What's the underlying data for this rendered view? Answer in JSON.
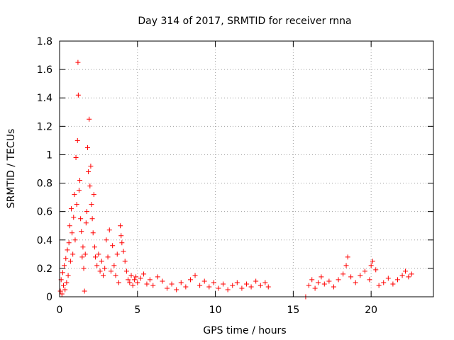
{
  "chart_data": {
    "type": "scatter",
    "title": "Day 314 of 2017, SRMTID for receiver rnna",
    "xlabel": "GPS time / hours",
    "ylabel": "SRMTID / TECUs",
    "xlim": [
      0,
      24
    ],
    "ylim": [
      0,
      1.8
    ],
    "xticks": [
      0,
      5,
      10,
      15,
      20
    ],
    "xtick_labels": [
      "0",
      "5",
      "10",
      "15",
      "20"
    ],
    "yticks": [
      0,
      0.2,
      0.4,
      0.6,
      0.8,
      1,
      1.2,
      1.4,
      1.6,
      1.8
    ],
    "ytick_labels": [
      "0",
      "0.2",
      "0.4",
      "0.6",
      "0.8",
      "1",
      "1.2",
      "1.4",
      "1.6",
      "1.8"
    ],
    "grid": true,
    "marker": "+",
    "marker_color": "#ff0000",
    "series": [
      {
        "name": "SRMTID",
        "points": [
          [
            0.05,
            0.04
          ],
          [
            0.1,
            0.12
          ],
          [
            0.15,
            0.02
          ],
          [
            0.2,
            0.17
          ],
          [
            0.25,
            0.08
          ],
          [
            0.3,
            0.22
          ],
          [
            0.35,
            0.05
          ],
          [
            0.4,
            0.27
          ],
          [
            0.45,
            0.1
          ],
          [
            0.5,
            0.33
          ],
          [
            0.55,
            0.15
          ],
          [
            0.6,
            0.38
          ],
          [
            0.65,
            0.5
          ],
          [
            0.7,
            0.25
          ],
          [
            0.75,
            0.62
          ],
          [
            0.8,
            0.45
          ],
          [
            0.85,
            0.3
          ],
          [
            0.9,
            0.56
          ],
          [
            0.95,
            0.72
          ],
          [
            1.0,
            0.4
          ],
          [
            1.05,
            0.98
          ],
          [
            1.1,
            0.65
          ],
          [
            1.15,
            1.1
          ],
          [
            1.18,
            1.65
          ],
          [
            1.2,
            1.42
          ],
          [
            1.25,
            0.75
          ],
          [
            1.3,
            0.82
          ],
          [
            1.35,
            0.55
          ],
          [
            1.4,
            0.46
          ],
          [
            1.45,
            0.28
          ],
          [
            1.5,
            0.35
          ],
          [
            1.55,
            0.2
          ],
          [
            1.6,
            0.04
          ],
          [
            1.65,
            0.3
          ],
          [
            1.7,
            0.52
          ],
          [
            1.75,
            0.6
          ],
          [
            1.8,
            1.05
          ],
          [
            1.85,
            0.88
          ],
          [
            1.9,
            1.25
          ],
          [
            1.95,
            0.78
          ],
          [
            2.0,
            0.92
          ],
          [
            2.05,
            0.65
          ],
          [
            2.1,
            0.55
          ],
          [
            2.15,
            0.45
          ],
          [
            2.2,
            0.72
          ],
          [
            2.25,
            0.35
          ],
          [
            2.3,
            0.28
          ],
          [
            2.4,
            0.22
          ],
          [
            2.5,
            0.3
          ],
          [
            2.6,
            0.18
          ],
          [
            2.7,
            0.25
          ],
          [
            2.8,
            0.15
          ],
          [
            2.9,
            0.2
          ],
          [
            3.0,
            0.4
          ],
          [
            3.1,
            0.28
          ],
          [
            3.2,
            0.47
          ],
          [
            3.3,
            0.18
          ],
          [
            3.4,
            0.36
          ],
          [
            3.5,
            0.22
          ],
          [
            3.6,
            0.15
          ],
          [
            3.7,
            0.3
          ],
          [
            3.8,
            0.1
          ],
          [
            3.9,
            0.5
          ],
          [
            3.95,
            0.43
          ],
          [
            4.0,
            0.38
          ],
          [
            4.1,
            0.32
          ],
          [
            4.2,
            0.25
          ],
          [
            4.3,
            0.18
          ],
          [
            4.4,
            0.12
          ],
          [
            4.5,
            0.1
          ],
          [
            4.6,
            0.15
          ],
          [
            4.7,
            0.08
          ],
          [
            4.8,
            0.12
          ],
          [
            4.9,
            0.14
          ],
          [
            5.0,
            0.1
          ],
          [
            5.2,
            0.13
          ],
          [
            5.4,
            0.16
          ],
          [
            5.6,
            0.09
          ],
          [
            5.8,
            0.12
          ],
          [
            6.0,
            0.08
          ],
          [
            6.3,
            0.14
          ],
          [
            6.6,
            0.11
          ],
          [
            6.9,
            0.06
          ],
          [
            7.2,
            0.09
          ],
          [
            7.5,
            0.05
          ],
          [
            7.8,
            0.1
          ],
          [
            8.1,
            0.07
          ],
          [
            8.4,
            0.12
          ],
          [
            8.7,
            0.15
          ],
          [
            9.0,
            0.08
          ],
          [
            9.3,
            0.11
          ],
          [
            9.6,
            0.07
          ],
          [
            9.9,
            0.1
          ],
          [
            10.2,
            0.06
          ],
          [
            10.5,
            0.09
          ],
          [
            10.8,
            0.05
          ],
          [
            11.1,
            0.08
          ],
          [
            11.4,
            0.1
          ],
          [
            11.7,
            0.06
          ],
          [
            12.0,
            0.09
          ],
          [
            12.3,
            0.07
          ],
          [
            12.6,
            0.11
          ],
          [
            12.9,
            0.08
          ],
          [
            13.2,
            0.1
          ],
          [
            13.4,
            0.07
          ],
          [
            15.8,
            0.0
          ],
          [
            16.0,
            0.08
          ],
          [
            16.2,
            0.12
          ],
          [
            16.4,
            0.06
          ],
          [
            16.6,
            0.1
          ],
          [
            16.8,
            0.14
          ],
          [
            17.0,
            0.09
          ],
          [
            17.3,
            0.11
          ],
          [
            17.6,
            0.07
          ],
          [
            17.9,
            0.12
          ],
          [
            18.2,
            0.16
          ],
          [
            18.4,
            0.22
          ],
          [
            18.5,
            0.28
          ],
          [
            18.7,
            0.14
          ],
          [
            19.0,
            0.1
          ],
          [
            19.3,
            0.15
          ],
          [
            19.6,
            0.18
          ],
          [
            19.9,
            0.12
          ],
          [
            20.0,
            0.22
          ],
          [
            20.1,
            0.25
          ],
          [
            20.3,
            0.19
          ],
          [
            20.5,
            0.08
          ],
          [
            20.8,
            0.1
          ],
          [
            21.1,
            0.13
          ],
          [
            21.4,
            0.09
          ],
          [
            21.7,
            0.12
          ],
          [
            22.0,
            0.15
          ],
          [
            22.2,
            0.18
          ],
          [
            22.4,
            0.14
          ],
          [
            22.6,
            0.16
          ]
        ]
      }
    ]
  }
}
